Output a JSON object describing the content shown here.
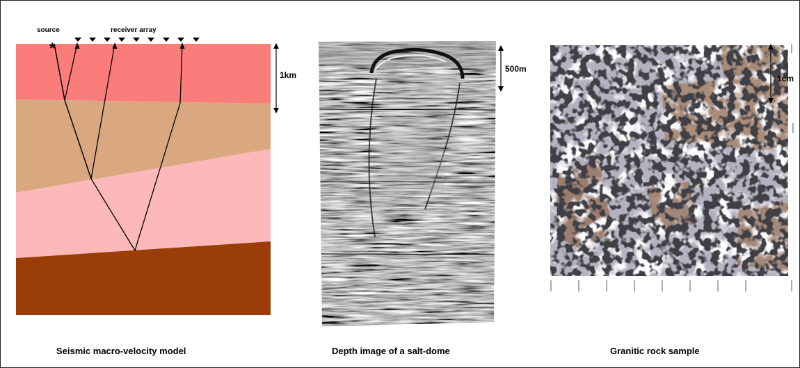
{
  "panels": {
    "velocity_model": {
      "caption": "Seismic macro-velocity model",
      "source_label": "source",
      "receiver_label": "receiver array",
      "scale_label": "1km",
      "layer_colors": [
        "#fa7d7c",
        "#d9a880",
        "#fdb9b9",
        "#9a3d07"
      ]
    },
    "salt_dome": {
      "caption": "Depth image of a salt-dome",
      "scale_label": "500m"
    },
    "granite": {
      "caption": "Granitic rock sample",
      "scale_label": "1cm"
    }
  }
}
